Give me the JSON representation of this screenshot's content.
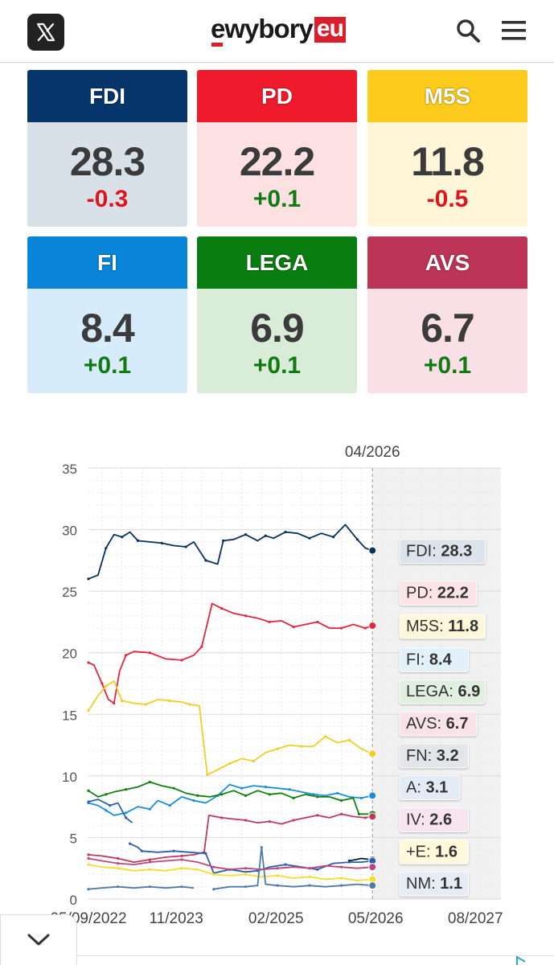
{
  "header": {
    "logo_text": "ewybory",
    "logo_badge": "eu",
    "icons": [
      "x-logo-icon",
      "search-icon",
      "menu-icon"
    ]
  },
  "cards": [
    {
      "party": "FDI",
      "value": "28.3",
      "change": "-0.3",
      "trend": "neg",
      "head_color": "#06356b",
      "body_color": "#d8e0e8"
    },
    {
      "party": "PD",
      "value": "22.2",
      "change": "+0.1",
      "trend": "pos",
      "head_color": "#ef1b2d",
      "body_color": "#fde0e2"
    },
    {
      "party": "M5S",
      "value": "11.8",
      "change": "-0.5",
      "trend": "neg",
      "head_color": "#fdcb1b",
      "body_color": "#fff6d8"
    },
    {
      "party": "FI",
      "value": "8.4",
      "change": "+0.1",
      "trend": "pos",
      "head_color": "#0a85d9",
      "body_color": "#d6ecfa"
    },
    {
      "party": "LEGA",
      "value": "6.9",
      "change": "+0.1",
      "trend": "pos",
      "head_color": "#0a7d10",
      "body_color": "#d8ecd8"
    },
    {
      "party": "AVS",
      "value": "6.7",
      "change": "+0.1",
      "trend": "pos",
      "head_color": "#bd3556",
      "body_color": "#f8e0e6"
    }
  ],
  "chart_data": {
    "type": "line",
    "current_marker": "04/2026",
    "y_ticks": [
      "0",
      "5",
      "10",
      "15",
      "20",
      "25",
      "30",
      "35"
    ],
    "ylim": [
      0,
      35
    ],
    "x_ticks": [
      "25/09/2022",
      "11/2023",
      "02/2025",
      "05/2026",
      "08/2027"
    ],
    "x_tick_values": [
      2022.73,
      2023.83,
      2025.08,
      2026.33,
      2027.58
    ],
    "xlim": [
      2022.73,
      2027.9
    ],
    "current_x": 2026.29,
    "grid": true,
    "labels": [
      {
        "text": "FDI: ",
        "value": "28.3",
        "color": "#0a2f5c",
        "bg": "#dde3ea",
        "y": 28.3
      },
      {
        "text": "PD: ",
        "value": "22.2",
        "color": "#e3263c",
        "bg": "#fde4e6",
        "y": 24.9
      },
      {
        "text": "M5S: ",
        "value": "11.8",
        "color": "#f2cd23",
        "bg": "#fff7d9",
        "y": 22.2
      },
      {
        "text": "FI: ",
        "value": "8.4",
        "color": "#1a8ede",
        "bg": "#e2f0fa",
        "y": 19.5
      },
      {
        "text": "LEGA: ",
        "value": "6.9",
        "color": "#118012",
        "bg": "#e0efe0",
        "y": 16.9
      },
      {
        "text": "AVS: ",
        "value": "6.7",
        "color": "#bb3a5e",
        "bg": "#f9e3e9",
        "y": 14.3
      },
      {
        "text": "FN: ",
        "value": "3.2",
        "color": "#0a1a3a",
        "bg": "#e3e5ea",
        "y": 11.7
      },
      {
        "text": "A: ",
        "value": "3.1",
        "color": "#2b5fb0",
        "bg": "#e3ebf6",
        "y": 9.1
      },
      {
        "text": "IV: ",
        "value": "2.6",
        "color": "#c0457c",
        "bg": "#f8e4ee",
        "y": 6.5
      },
      {
        "text": "+E: ",
        "value": "1.6",
        "color": "#f3de2c",
        "bg": "#fff9dc",
        "y": 3.9
      },
      {
        "text": "NM: ",
        "value": "1.1",
        "color": "#4f7aa8",
        "bg": "#e5ecf3",
        "y": 1.3
      }
    ],
    "series": [
      {
        "name": "FDI",
        "color": "#0a2f5c",
        "points": [
          [
            2022.73,
            26.0
          ],
          [
            2022.85,
            26.3
          ],
          [
            2022.95,
            28.5
          ],
          [
            2023.05,
            29.6
          ],
          [
            2023.15,
            29.4
          ],
          [
            2023.25,
            29.8
          ],
          [
            2023.35,
            29.1
          ],
          [
            2023.5,
            29.0
          ],
          [
            2023.65,
            28.9
          ],
          [
            2023.8,
            28.7
          ],
          [
            2023.95,
            28.6
          ],
          [
            2024.05,
            29.0
          ],
          [
            2024.2,
            27.5
          ],
          [
            2024.35,
            27.2
          ],
          [
            2024.42,
            29.1
          ],
          [
            2024.55,
            29.2
          ],
          [
            2024.7,
            29.6
          ],
          [
            2024.85,
            29.1
          ],
          [
            2024.95,
            29.5
          ],
          [
            2025.05,
            29.3
          ],
          [
            2025.2,
            29.8
          ],
          [
            2025.35,
            29.7
          ],
          [
            2025.5,
            29.3
          ],
          [
            2025.65,
            29.7
          ],
          [
            2025.8,
            29.4
          ],
          [
            2025.95,
            30.4
          ],
          [
            2026.1,
            29.2
          ],
          [
            2026.2,
            28.5
          ],
          [
            2026.29,
            28.3
          ]
        ]
      },
      {
        "name": "PD",
        "color": "#e3263c",
        "points": [
          [
            2022.73,
            19.2
          ],
          [
            2022.8,
            19.0
          ],
          [
            2022.9,
            17.5
          ],
          [
            2022.98,
            16.2
          ],
          [
            2023.05,
            15.9
          ],
          [
            2023.12,
            18.5
          ],
          [
            2023.2,
            19.8
          ],
          [
            2023.3,
            20.1
          ],
          [
            2023.5,
            20.0
          ],
          [
            2023.7,
            19.5
          ],
          [
            2023.9,
            19.4
          ],
          [
            2024.05,
            19.8
          ],
          [
            2024.15,
            20.5
          ],
          [
            2024.28,
            24.0
          ],
          [
            2024.4,
            23.6
          ],
          [
            2024.55,
            23.2
          ],
          [
            2024.7,
            23.0
          ],
          [
            2024.85,
            22.8
          ],
          [
            2025.0,
            22.5
          ],
          [
            2025.15,
            22.6
          ],
          [
            2025.3,
            22.1
          ],
          [
            2025.45,
            22.3
          ],
          [
            2025.6,
            22.5
          ],
          [
            2025.75,
            22.0
          ],
          [
            2025.9,
            22.0
          ],
          [
            2026.05,
            22.3
          ],
          [
            2026.2,
            22.0
          ],
          [
            2026.29,
            22.2
          ]
        ]
      },
      {
        "name": "M5S",
        "color": "#f2cd23",
        "points": [
          [
            2022.73,
            15.3
          ],
          [
            2022.85,
            16.5
          ],
          [
            2022.95,
            17.3
          ],
          [
            2023.05,
            17.7
          ],
          [
            2023.15,
            16.1
          ],
          [
            2023.3,
            15.9
          ],
          [
            2023.45,
            15.8
          ],
          [
            2023.6,
            16.2
          ],
          [
            2023.75,
            16.1
          ],
          [
            2023.9,
            16.0
          ],
          [
            2024.0,
            15.8
          ],
          [
            2024.12,
            15.7
          ],
          [
            2024.22,
            10.1
          ],
          [
            2024.35,
            10.5
          ],
          [
            2024.5,
            11.0
          ],
          [
            2024.65,
            11.4
          ],
          [
            2024.8,
            11.2
          ],
          [
            2024.95,
            11.9
          ],
          [
            2025.1,
            12.2
          ],
          [
            2025.25,
            12.5
          ],
          [
            2025.4,
            12.4
          ],
          [
            2025.55,
            12.4
          ],
          [
            2025.7,
            13.2
          ],
          [
            2025.85,
            12.7
          ],
          [
            2026.0,
            12.9
          ],
          [
            2026.15,
            12.2
          ],
          [
            2026.29,
            11.8
          ]
        ]
      },
      {
        "name": "FI",
        "color": "#1a8ede",
        "points": [
          [
            2022.73,
            7.8
          ],
          [
            2022.85,
            7.6
          ],
          [
            2022.95,
            7.2
          ],
          [
            2023.05,
            6.8
          ],
          [
            2023.2,
            7.0
          ],
          [
            2023.35,
            7.5
          ],
          [
            2023.5,
            7.3
          ],
          [
            2023.6,
            8.0
          ],
          [
            2023.75,
            7.6
          ],
          [
            2023.9,
            8.3
          ],
          [
            2024.05,
            8.0
          ],
          [
            2024.2,
            7.8
          ],
          [
            2024.35,
            8.4
          ],
          [
            2024.5,
            9.3
          ],
          [
            2024.65,
            9.0
          ],
          [
            2024.8,
            9.2
          ],
          [
            2024.95,
            9.1
          ],
          [
            2025.1,
            9.0
          ],
          [
            2025.25,
            8.9
          ],
          [
            2025.4,
            8.7
          ],
          [
            2025.55,
            8.5
          ],
          [
            2025.7,
            8.4
          ],
          [
            2025.85,
            8.6
          ],
          [
            2026.0,
            8.3
          ],
          [
            2026.15,
            8.2
          ],
          [
            2026.29,
            8.4
          ]
        ]
      },
      {
        "name": "LEGA",
        "color": "#118012",
        "points": [
          [
            2022.73,
            8.8
          ],
          [
            2022.85,
            8.3
          ],
          [
            2022.95,
            8.5
          ],
          [
            2023.05,
            8.7
          ],
          [
            2023.2,
            8.9
          ],
          [
            2023.35,
            9.1
          ],
          [
            2023.5,
            9.5
          ],
          [
            2023.65,
            9.2
          ],
          [
            2023.8,
            9.0
          ],
          [
            2023.95,
            8.6
          ],
          [
            2024.1,
            8.4
          ],
          [
            2024.25,
            8.3
          ],
          [
            2024.4,
            8.5
          ],
          [
            2024.55,
            8.8
          ],
          [
            2024.7,
            8.4
          ],
          [
            2024.85,
            8.8
          ],
          [
            2025.0,
            8.5
          ],
          [
            2025.15,
            8.6
          ],
          [
            2025.3,
            8.2
          ],
          [
            2025.45,
            8.5
          ],
          [
            2025.6,
            8.3
          ],
          [
            2025.75,
            8.3
          ],
          [
            2025.9,
            8.0
          ],
          [
            2026.05,
            8.2
          ],
          [
            2026.12,
            6.9
          ],
          [
            2026.29,
            6.9
          ]
        ]
      },
      {
        "name": "AVS",
        "color": "#bb3a5e",
        "points": [
          [
            2022.73,
            3.6
          ],
          [
            2022.9,
            3.5
          ],
          [
            2023.1,
            3.3
          ],
          [
            2023.3,
            3.0
          ],
          [
            2023.5,
            3.2
          ],
          [
            2023.7,
            3.4
          ],
          [
            2023.9,
            3.5
          ],
          [
            2024.05,
            3.6
          ],
          [
            2024.18,
            3.8
          ],
          [
            2024.24,
            6.8
          ],
          [
            2024.4,
            6.6
          ],
          [
            2024.55,
            6.5
          ],
          [
            2024.7,
            6.4
          ],
          [
            2024.85,
            6.2
          ],
          [
            2025.0,
            6.3
          ],
          [
            2025.15,
            6.1
          ],
          [
            2025.3,
            6.4
          ],
          [
            2025.45,
            6.6
          ],
          [
            2025.6,
            6.8
          ],
          [
            2025.75,
            6.6
          ],
          [
            2025.9,
            6.9
          ],
          [
            2026.05,
            6.7
          ],
          [
            2026.2,
            6.6
          ],
          [
            2026.29,
            6.7
          ]
        ]
      },
      {
        "name": "FN",
        "color": "#0a1a3a",
        "points": [
          [
            2026.0,
            3.1
          ],
          [
            2026.15,
            3.3
          ],
          [
            2026.29,
            3.2
          ]
        ]
      },
      {
        "name": "A",
        "color": "#2b5fb0",
        "points": [
          [
            2022.73,
            7.9
          ],
          [
            2022.85,
            8.1
          ],
          [
            2023.0,
            7.6
          ],
          [
            2023.1,
            7.8
          ],
          [
            2023.2,
            6.6
          ],
          [
            2023.28,
            6.2
          ]
        ]
      },
      {
        "name": "A2",
        "color": "#2b5fb0",
        "points": [
          [
            2023.25,
            4.5
          ],
          [
            2023.35,
            4.2
          ],
          [
            2023.4,
            3.9
          ],
          [
            2023.6,
            3.8
          ],
          [
            2023.8,
            3.9
          ],
          [
            2024.0,
            3.8
          ],
          [
            2024.2,
            3.7
          ],
          [
            2024.3,
            2.1
          ],
          [
            2024.5,
            2.4
          ],
          [
            2024.7,
            2.2
          ],
          [
            2024.85,
            2.3
          ],
          [
            2025.0,
            2.6
          ],
          [
            2025.2,
            2.8
          ],
          [
            2025.4,
            2.6
          ],
          [
            2025.6,
            2.4
          ],
          [
            2025.8,
            2.9
          ],
          [
            2026.0,
            3.0
          ],
          [
            2026.15,
            3.0
          ],
          [
            2026.29,
            3.1
          ]
        ]
      },
      {
        "name": "IV",
        "color": "#c0457c",
        "points": [
          [
            2022.73,
            3.3
          ],
          [
            2022.9,
            3.1
          ],
          [
            2023.1,
            2.9
          ],
          [
            2023.3,
            2.8
          ],
          [
            2023.5,
            3.0
          ],
          [
            2023.7,
            3.1
          ],
          [
            2023.9,
            3.2
          ],
          [
            2024.1,
            3.0
          ],
          [
            2024.3,
            2.6
          ],
          [
            2024.5,
            2.4
          ],
          [
            2024.7,
            2.5
          ],
          [
            2024.9,
            2.4
          ],
          [
            2025.1,
            2.5
          ],
          [
            2025.3,
            2.6
          ],
          [
            2025.5,
            2.5
          ],
          [
            2025.7,
            2.7
          ],
          [
            2025.9,
            2.6
          ],
          [
            2026.1,
            2.5
          ],
          [
            2026.29,
            2.6
          ]
        ]
      },
      {
        "name": "+E",
        "color": "#f3de2c",
        "points": [
          [
            2022.73,
            2.8
          ],
          [
            2022.9,
            2.6
          ],
          [
            2023.1,
            2.5
          ],
          [
            2023.3,
            2.3
          ],
          [
            2023.5,
            2.4
          ],
          [
            2023.7,
            2.3
          ],
          [
            2023.9,
            2.5
          ],
          [
            2024.1,
            2.4
          ],
          [
            2024.3,
            2.0
          ],
          [
            2024.5,
            1.9
          ],
          [
            2024.7,
            2.0
          ],
          [
            2024.9,
            1.8
          ],
          [
            2025.1,
            1.9
          ],
          [
            2025.3,
            1.7
          ],
          [
            2025.5,
            1.8
          ],
          [
            2025.7,
            1.6
          ],
          [
            2025.9,
            1.7
          ],
          [
            2026.1,
            1.5
          ],
          [
            2026.29,
            1.6
          ]
        ]
      },
      {
        "name": "NM",
        "color": "#4f7aa8",
        "points": [
          [
            2022.73,
            0.8
          ],
          [
            2022.9,
            0.9
          ],
          [
            2023.1,
            1.0
          ],
          [
            2023.3,
            0.9
          ],
          [
            2023.5,
            1.0
          ],
          [
            2023.7,
            0.9
          ],
          [
            2023.9,
            1.0
          ],
          [
            2024.05,
            0.9
          ]
        ]
      },
      {
        "name": "NM2",
        "color": "#4f7aa8",
        "points": [
          [
            2024.3,
            0.8
          ],
          [
            2024.5,
            1.0
          ],
          [
            2024.7,
            1.0
          ],
          [
            2024.85,
            1.1
          ],
          [
            2024.9,
            4.2
          ],
          [
            2024.95,
            1.2
          ],
          [
            2025.1,
            1.1
          ],
          [
            2025.3,
            1.0
          ],
          [
            2025.5,
            1.1
          ],
          [
            2025.7,
            1.0
          ],
          [
            2025.9,
            1.1
          ],
          [
            2026.1,
            1.2
          ],
          [
            2026.29,
            1.1
          ]
        ]
      }
    ]
  }
}
